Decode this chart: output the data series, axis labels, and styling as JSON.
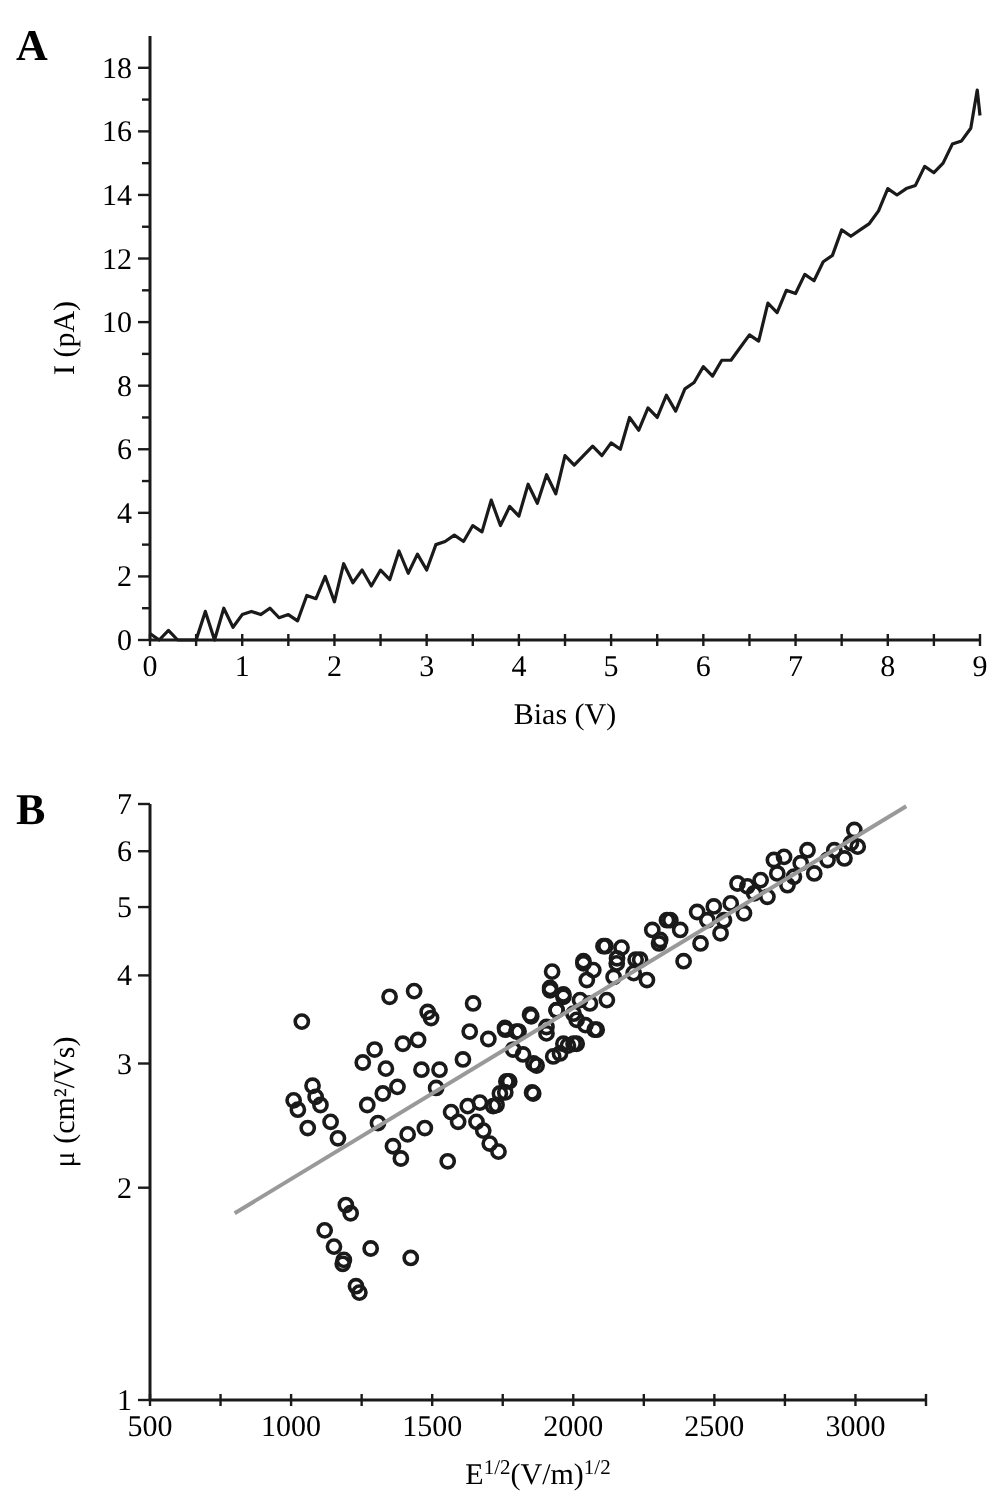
{
  "chart_data": [
    {
      "type": "line",
      "title": "A",
      "xlabel": "Bias (V)",
      "ylabel": "I (pA)",
      "xlim": [
        0,
        9
      ],
      "ylim": [
        0,
        19
      ],
      "xticks": [
        0,
        {
          "value": 0.5,
          "label": null
        },
        1,
        {
          "value": 1.5,
          "label": null
        },
        2,
        {
          "value": 2.5,
          "label": null
        },
        3,
        {
          "value": 3.5,
          "label": null
        },
        4,
        {
          "value": 4.5,
          "label": null
        },
        5,
        {
          "value": 5.5,
          "label": null
        },
        6,
        {
          "value": 6.5,
          "label": null
        },
        7,
        {
          "value": 7.5,
          "label": null
        },
        8,
        {
          "value": 8.5,
          "label": null
        },
        9
      ],
      "yticks": [
        0,
        {
          "value": 1,
          "label": null
        },
        2,
        {
          "value": 3,
          "label": null
        },
        4,
        {
          "value": 5,
          "label": null
        },
        6,
        {
          "value": 7,
          "label": null
        },
        8,
        {
          "value": 9,
          "label": null
        },
        10,
        {
          "value": 11,
          "label": null
        },
        12,
        {
          "value": 13,
          "label": null
        },
        14,
        {
          "value": 15,
          "label": null
        },
        16,
        {
          "value": 17,
          "label": null
        },
        18
      ],
      "series": [
        {
          "color": "#1a1a1a",
          "x": [
            0,
            0.1,
            0.2,
            0.3,
            0.4,
            0.5,
            0.6,
            0.7,
            0.8,
            0.9,
            1,
            1.1,
            1.2,
            1.3,
            1.4,
            1.5,
            1.6,
            1.7,
            1.8,
            1.9,
            2,
            2.1,
            2.2,
            2.3,
            2.4,
            2.5,
            2.6,
            2.7,
            2.8,
            2.9,
            3,
            3.1,
            3.2,
            3.3,
            3.4,
            3.5,
            3.6,
            3.7,
            3.8,
            3.9,
            4,
            4.1,
            4.2,
            4.3,
            4.4,
            4.5,
            4.6,
            4.7,
            4.8,
            4.9,
            5,
            5.1,
            5.2,
            5.3,
            5.4,
            5.5,
            5.6,
            5.7,
            5.8,
            5.9,
            6,
            6.1,
            6.2,
            6.3,
            6.4,
            6.5,
            6.6,
            6.7,
            6.8,
            6.9,
            7,
            7.1,
            7.2,
            7.3,
            7.4,
            7.5,
            7.6,
            7.7,
            7.8,
            7.9,
            8,
            8.1,
            8.2,
            8.3,
            8.4,
            8.5,
            8.6,
            8.7,
            8.8,
            8.9,
            8.97,
            9
          ],
          "values": [
            0.2,
            0,
            0.3,
            0,
            0,
            0,
            0.9,
            0,
            1,
            0.4,
            0.8,
            0.9,
            0.8,
            1,
            0.7,
            0.8,
            0.6,
            1.4,
            1.3,
            2,
            1.2,
            2.4,
            1.8,
            2.2,
            1.7,
            2.2,
            1.9,
            2.8,
            2.1,
            2.7,
            2.2,
            3,
            3.1,
            3.3,
            3.1,
            3.6,
            3.4,
            4.4,
            3.6,
            4.2,
            3.9,
            4.9,
            4.3,
            5.2,
            4.6,
            5.8,
            5.5,
            5.8,
            6.1,
            5.8,
            6.2,
            6,
            7,
            6.6,
            7.3,
            7,
            7.7,
            7.2,
            7.9,
            8.1,
            8.6,
            8.3,
            8.8,
            8.8,
            9.2,
            9.6,
            9.4,
            10.6,
            10.3,
            11,
            10.9,
            11.5,
            11.3,
            11.9,
            12.1,
            12.9,
            12.7,
            12.9,
            13.1,
            13.5,
            14.2,
            14,
            14.2,
            14.3,
            14.9,
            14.7,
            15,
            15.6,
            15.7,
            16.1,
            17.3,
            16.5
          ]
        }
      ]
    },
    {
      "type": "scatter",
      "title": "B",
      "xlabel": "E$^{1/2}$(V/m)$^{1/2}$",
      "ylabel": "μ (cm²/Vs)",
      "log": "y",
      "xlim": [
        500,
        3250
      ],
      "ylim": [
        1,
        7
      ],
      "xticks": [
        500,
        {
          "value": 750,
          "label": null
        },
        1000,
        {
          "value": 1250,
          "label": null
        },
        1500,
        {
          "value": 1750,
          "label": null
        },
        2000,
        {
          "value": 2250,
          "label": null
        },
        2500,
        {
          "value": 2750,
          "label": null
        },
        3000,
        {
          "value": 3250,
          "label": null
        }
      ],
      "yticks": [
        1,
        2,
        3,
        4,
        5,
        6,
        7
      ],
      "series": [
        {
          "marker": "circle",
          "color": "#1a1a1a",
          "x": [
            1038,
            1009,
            1024,
            1076,
            1087,
            1104,
            1059,
            1140,
            1166,
            1194,
            1211,
            1119,
            1152,
            1187,
            1282,
            1424,
            1183,
            1230,
            1242,
            1349,
            1436,
            1484,
            1496,
            1254,
            1296,
            1336,
            1396,
            1450,
            1270,
            1325,
            1377,
            1308,
            1361,
            1389,
            1413,
            1474,
            1462,
            1514,
            1526,
            1555,
            1567,
            1592,
            1609,
            1645,
            1633,
            1699,
            1626,
            1669,
            1657,
            1681,
            1704,
            1735,
            1728,
            1759,
            1773,
            1759,
            1806,
            1787,
            1822,
            1858,
            1870,
            1851,
            1905,
            1925,
            1918,
            1965,
            1941,
            1953,
            1981,
            2012,
            2001,
            2024,
            2043,
            2076,
            2036,
            2071,
            2114,
            2119,
            2143,
            2171,
            2155,
            2214,
            2261,
            2221,
            2280,
            2332,
            2304,
            1758,
            1799,
            1847,
            1859,
            1854,
            1763,
            1740,
            1716,
            1905,
            1918,
            1941,
            1965,
            1965,
            1929,
            2001,
            2012,
            2036,
            2048,
            2083,
            2059,
            2107,
            2154,
            2237,
            2308,
            2344,
            2379,
            2391,
            2439,
            2451,
            2498,
            2522,
            2558,
            2582,
            2605,
            2617,
            2664,
            2688,
            2723,
            2747,
            2759,
            2806,
            2830,
            2854,
            2901,
            2925,
            2961,
            2984,
            2996,
            3008,
            2711,
            2782,
            2534,
            2475,
            2641
          ],
          "values": [
            3.44,
            2.66,
            2.58,
            2.79,
            2.69,
            2.62,
            2.43,
            2.48,
            2.35,
            1.89,
            1.84,
            1.74,
            1.65,
            1.58,
            1.64,
            1.59,
            1.56,
            1.45,
            1.42,
            3.73,
            3.8,
            3.55,
            3.48,
            3.01,
            3.14,
            2.95,
            3.2,
            3.24,
            2.62,
            2.72,
            2.78,
            2.47,
            2.29,
            2.2,
            2.38,
            2.43,
            2.94,
            2.77,
            2.94,
            2.18,
            2.56,
            2.48,
            3.04,
            3.65,
            3.33,
            3.25,
            2.61,
            2.64,
            2.48,
            2.41,
            2.31,
            2.25,
            2.62,
            2.73,
            2.83,
            3.35,
            3.33,
            3.14,
            3.09,
            2.72,
            2.98,
            3.5,
            3.31,
            4.05,
            3.84,
            3.73,
            3.57,
            3.1,
            3.18,
            3.2,
            3.53,
            3.69,
            3.4,
            3.35,
            4.19,
            4.07,
            4.4,
            3.69,
            3.98,
            4.38,
            4.23,
            4.03,
            3.94,
            4.21,
            4.64,
            4.79,
            4.44,
            3.37,
            3.33,
            3.52,
            3,
            2.73,
            2.83,
            2.72,
            2.61,
            3.38,
            3.81,
            3.57,
            3.76,
            3.2,
            3.07,
            3.2,
            3.46,
            4.16,
            3.94,
            3.35,
            3.65,
            4.4,
            4.16,
            4.21,
            4.49,
            4.79,
            4.64,
            4.19,
            4.92,
            4.44,
            5.01,
            4.59,
            5.06,
            5.4,
            4.9,
            5.35,
            5.46,
            5.17,
            5.58,
            5.89,
            5.37,
            5.77,
            6.02,
            5.58,
            5.83,
            6.02,
            5.86,
            6.16,
            6.43,
            6.09,
            5.83,
            5.52,
            4.79,
            4.79,
            5.23
          ]
        },
        {
          "type": "line",
          "color": "#999999",
          "x": [
            800,
            3180
          ],
          "values": [
            1.84,
            6.95
          ]
        }
      ]
    }
  ]
}
